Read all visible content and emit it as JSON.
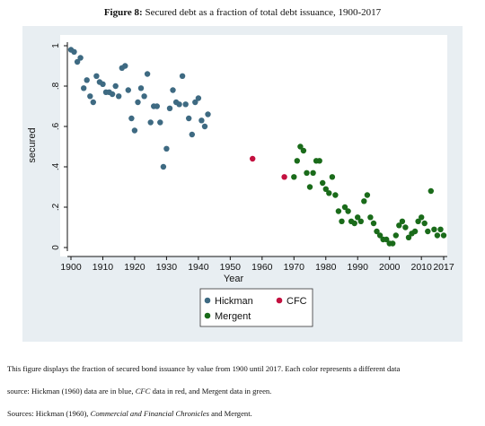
{
  "figure": {
    "label": "Figure 8:",
    "title": "Secured debt as a fraction of total debt issuance, 1900-2017"
  },
  "caption": {
    "line1": "This figure displays the fraction of secured bond issuance by value from 1900 until 2017. Each color represents a different data",
    "line2_a": "source: Hickman (1960) data are in blue, ",
    "line2_em": "CFC",
    "line2_b": " data in red, and Mergent data in green.",
    "line3_a": "Sources: Hickman (1960), ",
    "line3_em": "Commercial and Financial Chronicles",
    "line3_b": " and Mergent."
  },
  "colors": {
    "outer_background": "#e8eef2",
    "plot_background": "#ffffff",
    "hickman": "#3e6a82",
    "cfc": "#c3103f",
    "mergent": "#1a6b1a"
  },
  "chart_data": {
    "type": "scatter",
    "xlabel": "Year",
    "ylabel": "secured",
    "xlim": [
      1898,
      2018
    ],
    "ylim": [
      -0.02,
      1.02
    ],
    "xticks": [
      1900,
      1910,
      1920,
      1930,
      1940,
      1950,
      1960,
      1970,
      1980,
      1990,
      2000,
      2010,
      2017
    ],
    "yticks": [
      0,
      0.2,
      0.4,
      0.6,
      0.8,
      1
    ],
    "ytick_labels": [
      "0",
      ".2",
      ".4",
      ".6",
      ".8",
      "1"
    ],
    "grid": false,
    "legend_position": "bottom-center",
    "series": [
      {
        "name": "Hickman",
        "color": "#3e6a82",
        "points": [
          [
            1900,
            0.98
          ],
          [
            1901,
            0.97
          ],
          [
            1902,
            0.92
          ],
          [
            1903,
            0.94
          ],
          [
            1904,
            0.79
          ],
          [
            1905,
            0.83
          ],
          [
            1906,
            0.75
          ],
          [
            1907,
            0.72
          ],
          [
            1908,
            0.85
          ],
          [
            1909,
            0.82
          ],
          [
            1910,
            0.81
          ],
          [
            1911,
            0.77
          ],
          [
            1912,
            0.77
          ],
          [
            1913,
            0.76
          ],
          [
            1914,
            0.8
          ],
          [
            1915,
            0.75
          ],
          [
            1916,
            0.89
          ],
          [
            1917,
            0.9
          ],
          [
            1918,
            0.78
          ],
          [
            1919,
            0.64
          ],
          [
            1920,
            0.58
          ],
          [
            1921,
            0.72
          ],
          [
            1922,
            0.79
          ],
          [
            1923,
            0.75
          ],
          [
            1924,
            0.86
          ],
          [
            1925,
            0.62
          ],
          [
            1926,
            0.7
          ],
          [
            1927,
            0.7
          ],
          [
            1928,
            0.62
          ],
          [
            1929,
            0.4
          ],
          [
            1930,
            0.49
          ],
          [
            1931,
            0.69
          ],
          [
            1932,
            0.78
          ],
          [
            1933,
            0.72
          ],
          [
            1934,
            0.71
          ],
          [
            1935,
            0.85
          ],
          [
            1936,
            0.71
          ],
          [
            1937,
            0.64
          ],
          [
            1938,
            0.56
          ],
          [
            1939,
            0.72
          ],
          [
            1940,
            0.74
          ],
          [
            1941,
            0.63
          ],
          [
            1942,
            0.6
          ],
          [
            1943,
            0.66
          ]
        ]
      },
      {
        "name": "CFC",
        "color": "#c3103f",
        "points": [
          [
            1957,
            0.44
          ],
          [
            1967,
            0.35
          ]
        ]
      },
      {
        "name": "Mergent",
        "color": "#1a6b1a",
        "points": [
          [
            1970,
            0.35
          ],
          [
            1971,
            0.43
          ],
          [
            1972,
            0.5
          ],
          [
            1973,
            0.48
          ],
          [
            1974,
            0.37
          ],
          [
            1975,
            0.3
          ],
          [
            1976,
            0.37
          ],
          [
            1977,
            0.43
          ],
          [
            1978,
            0.43
          ],
          [
            1979,
            0.32
          ],
          [
            1980,
            0.29
          ],
          [
            1981,
            0.27
          ],
          [
            1982,
            0.35
          ],
          [
            1983,
            0.26
          ],
          [
            1984,
            0.18
          ],
          [
            1985,
            0.13
          ],
          [
            1986,
            0.2
          ],
          [
            1987,
            0.18
          ],
          [
            1988,
            0.13
          ],
          [
            1989,
            0.12
          ],
          [
            1990,
            0.15
          ],
          [
            1991,
            0.13
          ],
          [
            1992,
            0.23
          ],
          [
            1993,
            0.26
          ],
          [
            1994,
            0.15
          ],
          [
            1995,
            0.12
          ],
          [
            1996,
            0.08
          ],
          [
            1997,
            0.06
          ],
          [
            1998,
            0.04
          ],
          [
            1999,
            0.04
          ],
          [
            2000,
            0.02
          ],
          [
            2001,
            0.02
          ],
          [
            2002,
            0.06
          ],
          [
            2003,
            0.11
          ],
          [
            2004,
            0.13
          ],
          [
            2005,
            0.1
          ],
          [
            2006,
            0.05
          ],
          [
            2007,
            0.07
          ],
          [
            2008,
            0.08
          ],
          [
            2009,
            0.13
          ],
          [
            2010,
            0.15
          ],
          [
            2011,
            0.12
          ],
          [
            2012,
            0.08
          ],
          [
            2013,
            0.28
          ],
          [
            2014,
            0.09
          ],
          [
            2015,
            0.06
          ],
          [
            2016,
            0.09
          ],
          [
            2017,
            0.06
          ]
        ]
      }
    ]
  }
}
